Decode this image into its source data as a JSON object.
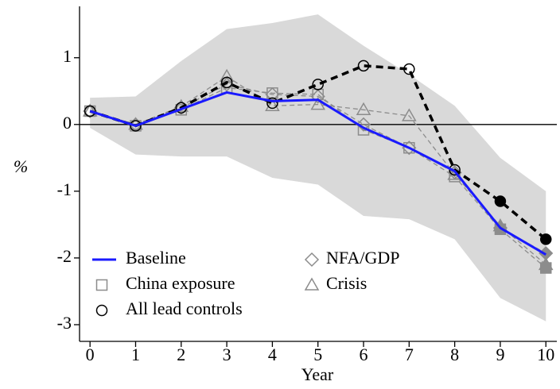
{
  "chart_data": {
    "type": "line",
    "x": [
      0,
      1,
      2,
      3,
      4,
      5,
      6,
      7,
      8,
      9,
      10
    ],
    "xlim": [
      -0.23,
      10.24
    ],
    "xticks": [
      0,
      1,
      2,
      3,
      4,
      5,
      6,
      7,
      8,
      9,
      10
    ],
    "ylim": [
      -3.25,
      1.77
    ],
    "yticks": [
      1,
      0,
      -1,
      -2,
      -3
    ],
    "xlabel": "Year",
    "ylabel": "%",
    "hline": 0,
    "band": {
      "color": "#d9d9d9",
      "upper": [
        0.4,
        0.42,
        0.95,
        1.43,
        1.52,
        1.65,
        1.18,
        0.75,
        0.28,
        -0.5,
        -1.0
      ],
      "lower": [
        -0.05,
        -0.45,
        -0.48,
        -0.48,
        -0.8,
        -0.9,
        -1.37,
        -1.42,
        -1.72,
        -2.6,
        -2.95
      ]
    },
    "filled_markers": [
      false,
      false,
      false,
      false,
      false,
      false,
      false,
      false,
      false,
      true,
      true
    ],
    "series": [
      {
        "name": "Baseline",
        "color": "#1a1aff",
        "marker": "none",
        "dashed": false,
        "width": 3,
        "values": [
          0.2,
          -0.02,
          0.23,
          0.48,
          0.35,
          0.37,
          -0.05,
          -0.35,
          -0.7,
          -1.55,
          -1.95
        ]
      },
      {
        "name": "China exposure",
        "color": "#8c8c8c",
        "marker": "square",
        "dashed": true,
        "width": 1.3,
        "values": [
          0.2,
          -0.02,
          0.22,
          0.55,
          0.47,
          0.45,
          -0.08,
          -0.35,
          -0.78,
          -1.57,
          -2.15
        ]
      },
      {
        "name": "All lead controls",
        "color": "#000000",
        "marker": "circle",
        "dashed": true,
        "width": 3.5,
        "values": [
          0.2,
          -0.02,
          0.25,
          0.63,
          0.32,
          0.6,
          0.88,
          0.83,
          -0.68,
          -1.15,
          -1.72
        ]
      },
      {
        "name": "NFA/GDP",
        "color": "#8c8c8c",
        "marker": "diamond",
        "dashed": true,
        "width": 1.3,
        "values": [
          0.2,
          0.0,
          0.25,
          0.6,
          0.45,
          0.42,
          0.0,
          -0.35,
          -0.72,
          -1.55,
          -1.93
        ]
      },
      {
        "name": "Crisis",
        "color": "#8c8c8c",
        "marker": "triangle",
        "dashed": true,
        "width": 1.3,
        "values": [
          0.2,
          0.0,
          0.27,
          0.72,
          0.28,
          0.3,
          0.22,
          0.13,
          -0.75,
          -1.52,
          -2.1
        ]
      }
    ]
  }
}
